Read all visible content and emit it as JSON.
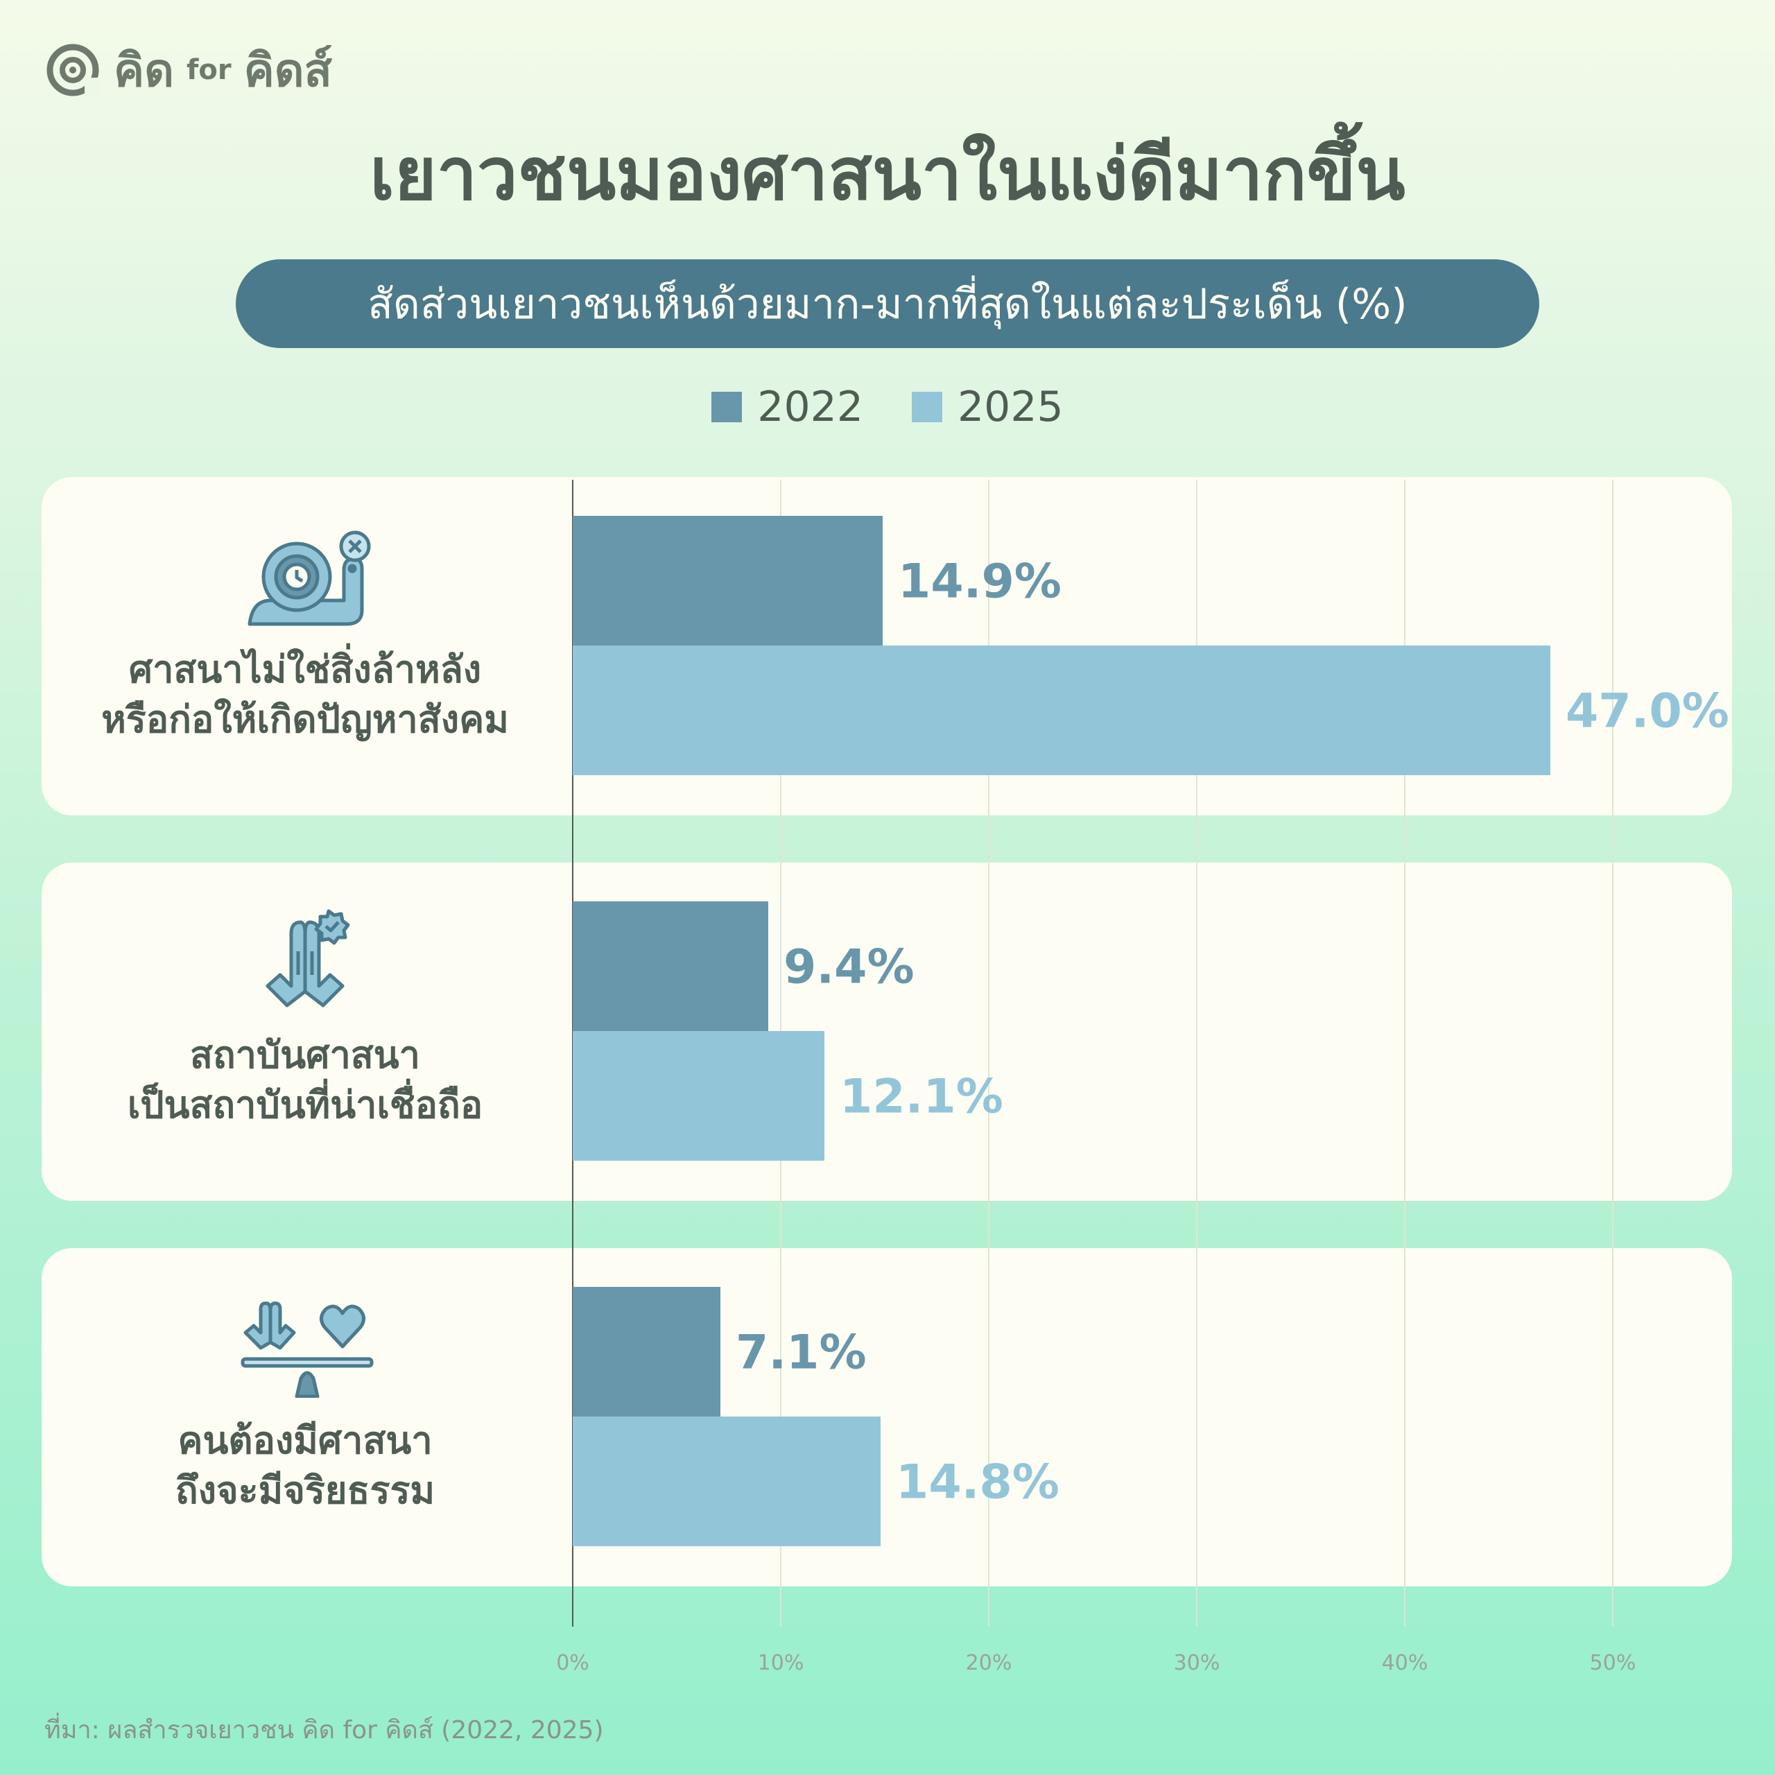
{
  "brand": {
    "name": "คิด",
    "for": "for",
    "name2": "คิดส์"
  },
  "title": "เยาวชนมองศาสนาในแง่ดีมากขึ้น",
  "subtitle": "สัดส่วนเยาวชนเห็นด้วยมาก-มากที่สุดในแต่ละประเด็น (%)",
  "source": "ที่มา: ผลสำรวจเยาวชน คิด for คิดส์ (2022, 2025)",
  "colors": {
    "series2022": "#6896ab",
    "series2025": "#93c5d9",
    "panel": "#fdfdf3",
    "pill": "#4a7a8c"
  },
  "chart_data": {
    "type": "bar",
    "orientation": "horizontal",
    "categories": [
      {
        "line1": "ศาสนาไม่ใช่สิ่งล้าหลัง",
        "line2": "หรือก่อให้เกิดปัญหาสังคม",
        "icon": "snail-clock-icon"
      },
      {
        "line1": "สถาบันศาสนา",
        "line2": "เป็นสถาบันที่น่าเชื่อถือ",
        "icon": "praying-hands-badge-icon"
      },
      {
        "line1": "คนต้องมีศาสนา",
        "line2": "ถึงจะมีจริยธรรม",
        "icon": "praying-hands-heart-scale-icon"
      }
    ],
    "series": [
      {
        "name": "2022",
        "values": [
          14.9,
          9.4,
          7.1
        ],
        "labels": [
          "14.9%",
          "9.4%",
          "7.1%"
        ]
      },
      {
        "name": "2025",
        "values": [
          47.0,
          12.1,
          14.8
        ],
        "labels": [
          "47.0%",
          "12.1%",
          "14.8%"
        ]
      }
    ],
    "xlim": [
      0,
      50
    ],
    "xticks": [
      "0%",
      "10%",
      "20%",
      "30%",
      "40%",
      "50%"
    ],
    "legend_position": "top-center",
    "grid": true
  }
}
